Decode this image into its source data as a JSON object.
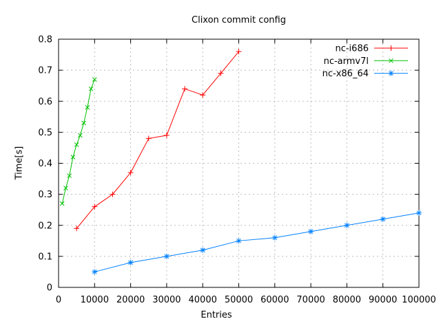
{
  "window": {
    "background": "#ffffff"
  },
  "chart_data": {
    "type": "line",
    "title": "Clixon commit config",
    "xlabel": "Entries",
    "ylabel": "Time[s]",
    "xlim": [
      0,
      100000
    ],
    "ylim": [
      0,
      0.8
    ],
    "x_tick_values": [
      0,
      10000,
      20000,
      30000,
      40000,
      50000,
      60000,
      70000,
      80000,
      90000,
      100000
    ],
    "x_tick_labels": [
      "0",
      "10000",
      "20000",
      "30000",
      "40000",
      "50000",
      "60000",
      "70000",
      "80000",
      "90000",
      "100000"
    ],
    "y_tick_values": [
      0,
      0.1,
      0.2,
      0.3,
      0.4,
      0.5,
      0.6,
      0.7,
      0.8
    ],
    "y_tick_labels": [
      "0",
      "0.1",
      "0.2",
      "0.3",
      "0.4",
      "0.5",
      "0.6",
      "0.7",
      "0.8"
    ],
    "grid": true,
    "legend_position": "top-right-inside",
    "axis_color": "#000000",
    "grid_color": "#bbbbbb",
    "series": [
      {
        "name": "nc-i686",
        "color": "#ff0000",
        "marker": "plus",
        "x": [
          5000,
          10000,
          15000,
          20000,
          25000,
          30000,
          35000,
          40000,
          45000,
          50000
        ],
        "y": [
          0.19,
          0.26,
          0.3,
          0.37,
          0.48,
          0.49,
          0.64,
          0.62,
          0.69,
          0.76
        ]
      },
      {
        "name": "nc-armv7l",
        "color": "#00c000",
        "marker": "cross",
        "x": [
          1000,
          2000,
          3000,
          4000,
          5000,
          6000,
          7000,
          8000,
          9000,
          10000
        ],
        "y": [
          0.27,
          0.32,
          0.36,
          0.42,
          0.46,
          0.49,
          0.53,
          0.58,
          0.64,
          0.67
        ]
      },
      {
        "name": "nc-x86_64",
        "color": "#0080ff",
        "marker": "asterisk",
        "x": [
          10000,
          20000,
          30000,
          40000,
          50000,
          60000,
          70000,
          80000,
          90000,
          100000
        ],
        "y": [
          0.05,
          0.08,
          0.1,
          0.12,
          0.15,
          0.16,
          0.18,
          0.2,
          0.22,
          0.24
        ]
      }
    ]
  }
}
